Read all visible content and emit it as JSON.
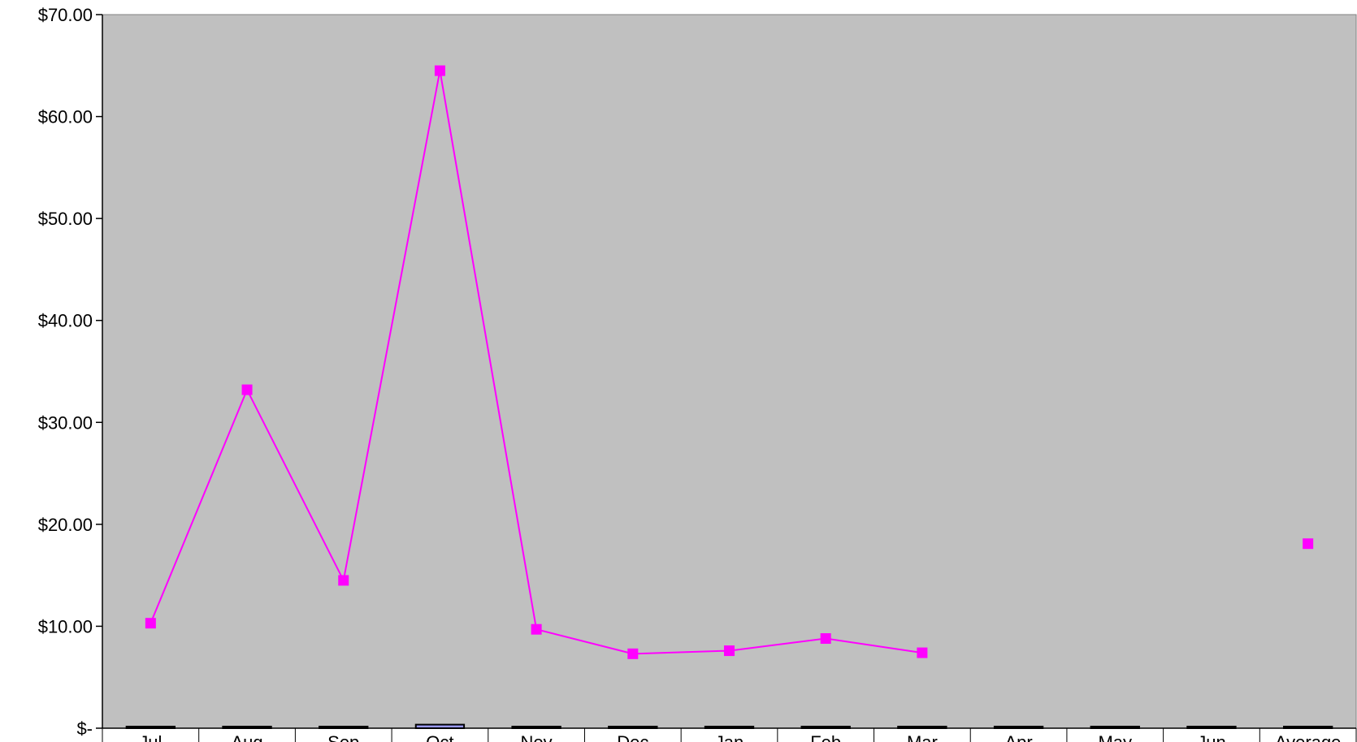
{
  "chart_data": {
    "type": "line",
    "title": "",
    "xlabel": "",
    "ylabel": "",
    "categories": [
      "Jul",
      "Aug",
      "Sep",
      "Oct",
      "Nov",
      "Dec",
      "Jan",
      "Feb",
      "Mar",
      "Apr",
      "May",
      "Jun",
      "Average"
    ],
    "ylim": [
      0,
      70
    ],
    "y_ticks": [
      0,
      10,
      20,
      30,
      40,
      50,
      60,
      70
    ],
    "y_tick_labels": [
      "$-",
      "$10.00",
      "$20.00",
      "$30.00",
      "$40.00",
      "$50.00",
      "$60.00",
      "$70.00"
    ],
    "grid": false,
    "legend": "none",
    "plot_background": "#c0c0c0",
    "series": [
      {
        "type": "line",
        "color": "#ff00ff",
        "marker": "square",
        "values": [
          10.3,
          33.2,
          14.5,
          64.5,
          9.7,
          7.3,
          7.6,
          8.8,
          7.4,
          null,
          null,
          null,
          18.1
        ],
        "connect_indices": [
          0,
          1,
          2,
          3,
          4,
          5,
          6,
          7,
          8
        ]
      },
      {
        "type": "bar",
        "color": "#9999ff",
        "values": [
          0.02,
          0.12,
          0.05,
          0.35,
          0.02,
          0.02,
          0.02,
          0.02,
          0.02,
          0,
          0,
          0,
          0.07
        ]
      }
    ]
  }
}
